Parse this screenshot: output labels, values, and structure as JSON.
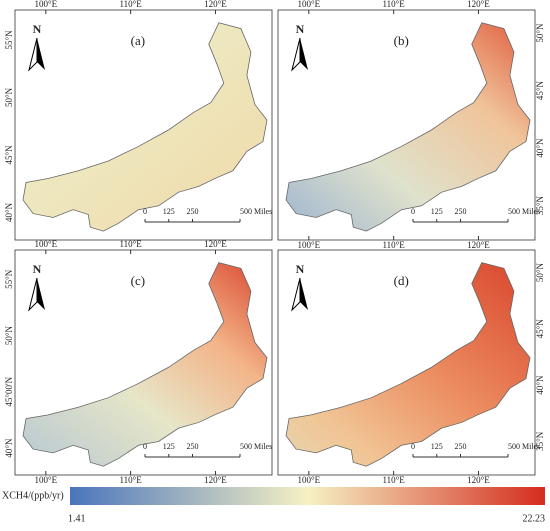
{
  "north_label": "N",
  "panels": [
    {
      "label": "(a)",
      "top": [
        "100°E",
        "110°E",
        "120°E"
      ],
      "left": [
        "55°N",
        "50°N",
        "45°N",
        "40°N"
      ],
      "right": [],
      "bottom": []
    },
    {
      "label": "(b)",
      "top": [
        "100°E",
        "110°E",
        "120°E"
      ],
      "left": [],
      "right": [
        "50°N",
        "45°N",
        "40°N",
        "35°N"
      ],
      "bottom": [
        "100°E",
        "110°E",
        "120°E"
      ]
    },
    {
      "label": "(c)",
      "top": [
        "100°E",
        "110°E",
        "120°E"
      ],
      "left": [
        "55°N",
        "50°N",
        "45°00'N",
        "40°N"
      ],
      "right": [],
      "bottom": [
        "100°E",
        "110°E",
        "120°E"
      ]
    },
    {
      "label": "(d)",
      "top": [],
      "left": [],
      "right": [
        "50°N",
        "45°N",
        "40°N",
        "35°N"
      ],
      "bottom": [
        "100°E",
        "110°E",
        "120°E"
      ]
    }
  ],
  "scale_bar": [
    "0",
    "125",
    "250",
    "500 Miles"
  ],
  "colorbar": {
    "title": "XCH4/(ppb/yr)",
    "min": "1.41",
    "max": "22.23"
  }
}
